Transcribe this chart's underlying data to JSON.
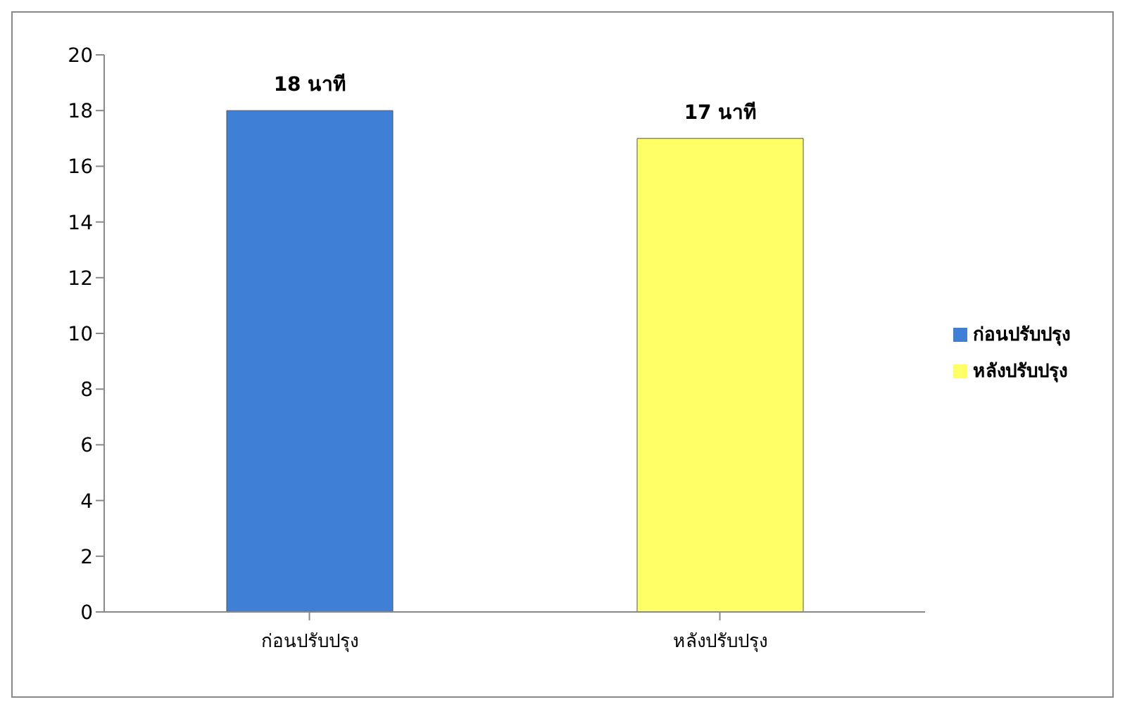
{
  "chart_data": {
    "type": "bar",
    "categories": [
      "ก่อนปรับปรุง",
      "หลังปรับปรุง"
    ],
    "stacked": true,
    "series": [
      {
        "name": "ก่อนปรับปรุง",
        "color": "#3f7fd6",
        "values": [
          18,
          null
        ],
        "value_labels": [
          "18 นาที",
          null
        ]
      },
      {
        "name": "หลังปรับปรุง",
        "color": "#ffff66",
        "values": [
          null,
          17
        ],
        "value_labels": [
          null,
          "17 นาที"
        ]
      }
    ],
    "ylim": [
      0,
      20
    ],
    "yticks": [
      0,
      2,
      4,
      6,
      8,
      10,
      12,
      14,
      16,
      18,
      20
    ],
    "legend": "right"
  }
}
